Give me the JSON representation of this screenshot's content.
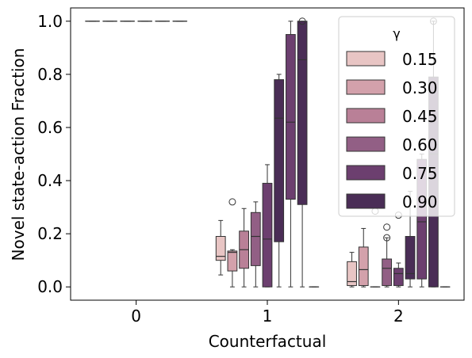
{
  "chart_data": {
    "type": "box",
    "xlabel": "Counterfactual",
    "ylabel": "Novel state-action Fraction",
    "categories": [
      "0",
      "1",
      "2"
    ],
    "ylim": [
      -0.05,
      1.05
    ],
    "yticks": [
      "0.0",
      "0.2",
      "0.4",
      "0.6",
      "0.8",
      "1.0"
    ],
    "ytick_values": [
      0.0,
      0.2,
      0.4,
      0.6,
      0.8,
      1.0
    ],
    "grid": false,
    "legend": {
      "title": "γ",
      "placement": "top-right",
      "entries": [
        "0.15",
        "0.30",
        "0.45",
        "0.60",
        "0.75",
        "0.90"
      ]
    },
    "colors": [
      "#e8c5c4",
      "#d3a1ab",
      "#b98097",
      "#925f85",
      "#6c3f6f",
      "#4a2d56"
    ],
    "edge_color": "#333333",
    "series": [
      {
        "name": "0.15",
        "boxes": [
          {
            "q1": 1.0,
            "median": 1.0,
            "q3": 1.0,
            "whislo": 1.0,
            "whishi": 1.0,
            "fliers": []
          },
          {
            "q1": 0.1,
            "median": 0.115,
            "q3": 0.19,
            "whislo": 0.045,
            "whishi": 0.25,
            "fliers": []
          },
          {
            "q1": 0.005,
            "median": 0.02,
            "q3": 0.095,
            "whislo": 0.0,
            "whishi": 0.13,
            "fliers": []
          }
        ]
      },
      {
        "name": "0.30",
        "boxes": [
          {
            "q1": 1.0,
            "median": 1.0,
            "q3": 1.0,
            "whislo": 1.0,
            "whishi": 1.0,
            "fliers": []
          },
          {
            "q1": 0.06,
            "median": 0.13,
            "q3": 0.135,
            "whislo": 0.0,
            "whishi": 0.14,
            "fliers": [
              0.32
            ]
          },
          {
            "q1": 0.005,
            "median": 0.065,
            "q3": 0.15,
            "whislo": 0.0,
            "whishi": 0.22,
            "fliers": []
          }
        ]
      },
      {
        "name": "0.45",
        "boxes": [
          {
            "q1": 1.0,
            "median": 1.0,
            "q3": 1.0,
            "whislo": 1.0,
            "whishi": 1.0,
            "fliers": []
          },
          {
            "q1": 0.07,
            "median": 0.14,
            "q3": 0.21,
            "whislo": 0.0,
            "whishi": 0.295,
            "fliers": []
          },
          {
            "q1": 0.0,
            "median": 0.0,
            "q3": 0.0,
            "whislo": 0.0,
            "whishi": 0.0,
            "fliers": [
              0.285
            ]
          }
        ]
      },
      {
        "name": "0.60",
        "boxes": [
          {
            "q1": 1.0,
            "median": 1.0,
            "q3": 1.0,
            "whislo": 1.0,
            "whishi": 1.0,
            "fliers": []
          },
          {
            "q1": 0.08,
            "median": 0.19,
            "q3": 0.28,
            "whislo": 0.0,
            "whishi": 0.32,
            "fliers": []
          },
          {
            "q1": 0.005,
            "median": 0.07,
            "q3": 0.105,
            "whislo": 0.0,
            "whishi": 0.185,
            "fliers": [
              0.225,
              0.185
            ]
          }
        ]
      },
      {
        "name": "0.75",
        "boxes": [
          {
            "q1": 1.0,
            "median": 1.0,
            "q3": 1.0,
            "whislo": 1.0,
            "whishi": 1.0,
            "fliers": []
          },
          {
            "q1": 0.0,
            "median": 0.18,
            "q3": 0.39,
            "whislo": 0.0,
            "whishi": 0.46,
            "fliers": []
          },
          {
            "q1": 0.005,
            "median": 0.05,
            "q3": 0.07,
            "whislo": 0.0,
            "whishi": 0.09,
            "fliers": [
              0.27
            ]
          }
        ]
      },
      {
        "name": "0.90",
        "boxes": [
          {
            "q1": 1.0,
            "median": 1.0,
            "q3": 1.0,
            "whislo": 1.0,
            "whishi": 1.0,
            "fliers": []
          },
          {
            "q1": 0.17,
            "median": 0.635,
            "q3": 0.78,
            "whislo": 0.0,
            "whishi": 0.8,
            "fliers": []
          },
          {
            "q1": 0.03,
            "median": 0.05,
            "q3": 0.19,
            "whislo": 0.0,
            "whishi": 0.36,
            "fliers": []
          }
        ]
      }
    ],
    "extra_boxes_note": "",
    "visible_extra": [
      {
        "category": "1",
        "color_index": 4,
        "q1": 0.33,
        "median": 0.62,
        "q3": 0.95,
        "whislo": 0.0,
        "whishi": 1.0,
        "fliers": []
      },
      {
        "category": "1",
        "color_index": 5,
        "q1": 0.31,
        "median": 0.855,
        "q3": 1.0,
        "whislo": 0.0,
        "whishi": 1.0,
        "fliers": [
          1.0
        ]
      },
      {
        "category": "1",
        "color_index": 5,
        "q1": 0.0,
        "median": 0.0,
        "q3": 0.0,
        "whislo": 0.0,
        "whishi": 0.0,
        "fliers": []
      },
      {
        "category": "2",
        "color_index": 4,
        "q1": 0.03,
        "median": 0.245,
        "q3": 0.48,
        "whislo": 0.0,
        "whishi": 0.5,
        "fliers": []
      },
      {
        "category": "2",
        "color_index": 5,
        "q1": 0.0,
        "median": 0.5,
        "q3": 0.79,
        "whislo": 0.0,
        "whishi": 1.0,
        "fliers": [
          1.0
        ]
      },
      {
        "category": "2",
        "color_index": 5,
        "q1": 0.0,
        "median": 0.0,
        "q3": 0.0,
        "whislo": 0.0,
        "whishi": 0.0,
        "fliers": []
      }
    ]
  }
}
